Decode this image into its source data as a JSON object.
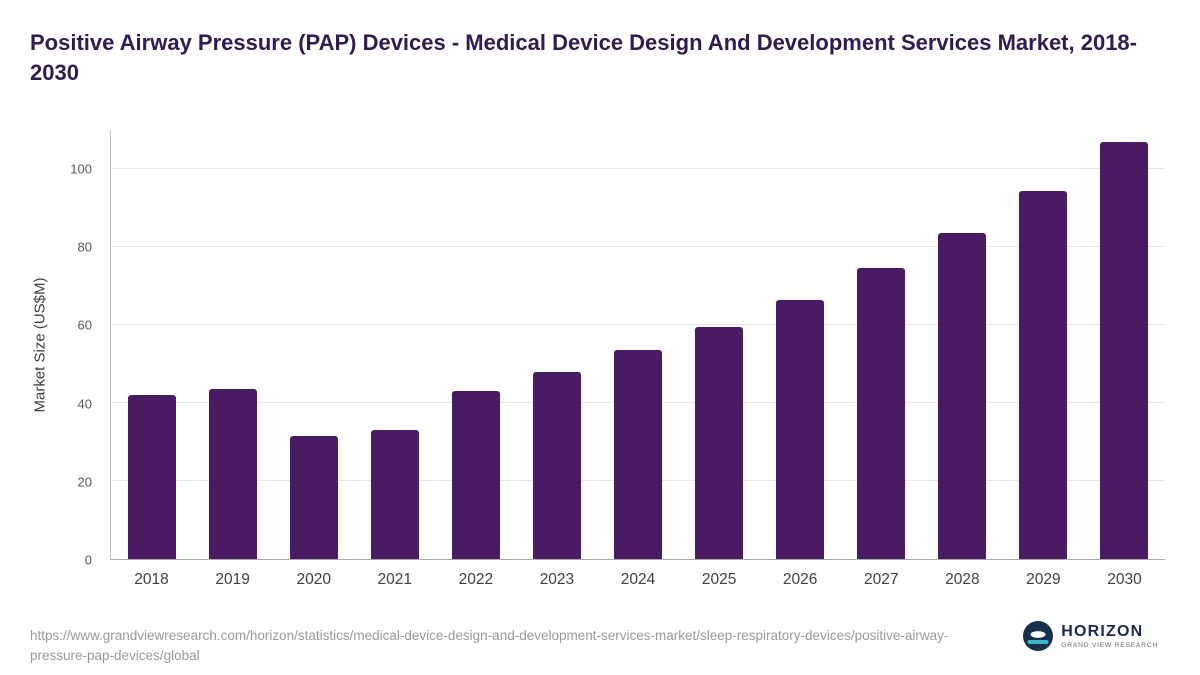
{
  "title": "Positive Airway Pressure (PAP) Devices - Medical Device Design And Development Services Market, 2018-2030",
  "chart_data": {
    "type": "bar",
    "categories": [
      "2018",
      "2019",
      "2020",
      "2021",
      "2022",
      "2023",
      "2024",
      "2025",
      "2026",
      "2027",
      "2028",
      "2029",
      "2030"
    ],
    "values": [
      42,
      43.7,
      31.5,
      33,
      43,
      48,
      53.7,
      59.6,
      66.5,
      74.6,
      83.6,
      94.3,
      107
    ],
    "title": "Positive Airway Pressure (PAP) Devices - Medical Device Design And Development Services Market, 2018-2030",
    "xlabel": "",
    "ylabel": "Market Size (US$M)",
    "yticks": [
      0,
      20,
      40,
      60,
      80,
      100
    ],
    "ylim": [
      0,
      110
    ],
    "grid": true,
    "legend_position": "none",
    "bar_color": "#4a1b63"
  },
  "footer": {
    "source_url": "https://www.grandviewresearch.com/horizon/statistics/medical-device-design-and-development-services-market/sleep-respiratory-devices/positive-airway-pressure-pap-devices/global",
    "logo": {
      "name": "HORIZON",
      "subtitle": "GRAND VIEW RESEARCH"
    }
  },
  "colors": {
    "bar": "#4a1b63",
    "title_text": "#321a52",
    "axis_text": "#595959",
    "source_text": "#9a9a9a",
    "logo_navy": "#14304c",
    "logo_teal": "#39b7c8"
  }
}
